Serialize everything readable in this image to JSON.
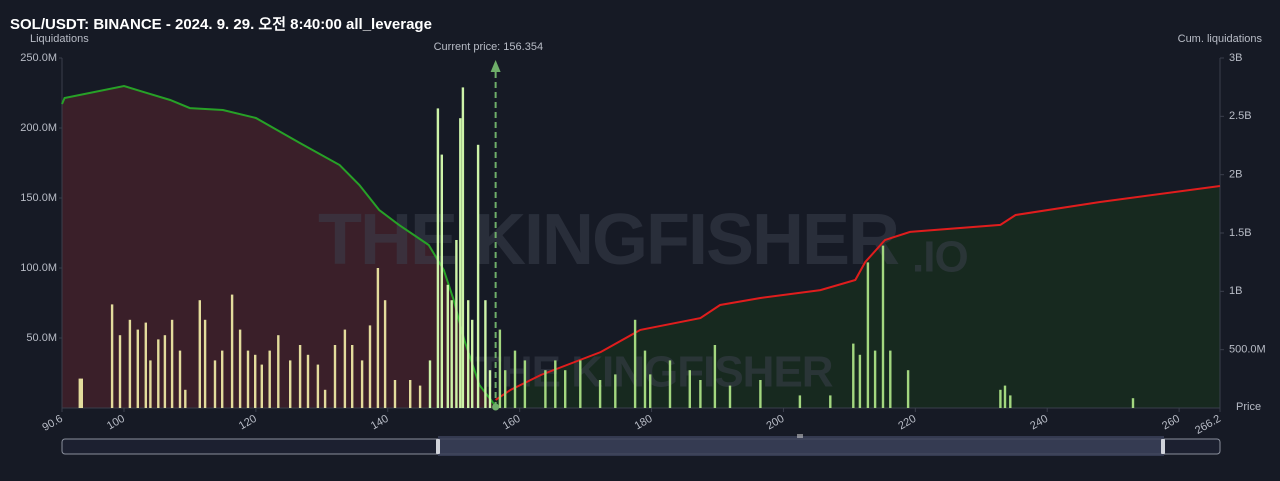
{
  "chart_data": {
    "type": "liquidation-map",
    "title": "SOL/USDT: BINANCE - 2024. 9. 29. 오전 8:40:00 all_leverage",
    "y_label": "Liquidations",
    "y2_label": "Cum. liquidations",
    "x_label": "Price",
    "watermark": "THE KINGFISHER",
    "watermark_suffix": ".IO",
    "current_price": 156.354,
    "current_price_label": "Current price: 156.354",
    "current_price_color": "#6fae6a",
    "xlim": [
      90.6,
      266.2
    ],
    "xticks": [
      90.6,
      100,
      120,
      140,
      160,
      180,
      200,
      220,
      240,
      260,
      266.2
    ],
    "ylim": [
      0,
      250000000
    ],
    "yticks": [
      {
        "value": 50000000,
        "label": "50.0M"
      },
      {
        "value": 100000000,
        "label": "100.0M"
      },
      {
        "value": 150000000,
        "label": "150.0M"
      },
      {
        "value": 200000000,
        "label": "200.0M"
      },
      {
        "value": 250000000,
        "label": "250.0M"
      }
    ],
    "y2lim": [
      0,
      3000000000
    ],
    "y2ticks": [
      {
        "value": 500000000,
        "label": "500.0M"
      },
      {
        "value": 1000000000,
        "label": "1B"
      },
      {
        "value": 1500000000,
        "label": "1.5B"
      },
      {
        "value": 2000000000,
        "label": "2B"
      },
      {
        "value": 2500000000,
        "label": "2.5B"
      },
      {
        "value": 3000000000,
        "label": "3B"
      }
    ],
    "bar_series": [
      {
        "color": "#e3dc9c",
        "x": [
          93.3,
          93.6,
          98.2,
          99.4,
          100.9,
          102.1,
          103.3,
          104.0,
          105.2,
          106.2,
          107.3,
          108.5,
          109.3,
          111.5,
          112.3,
          113.8,
          114.9,
          116.4,
          117.6,
          118.8,
          119.9,
          120.9,
          122.1,
          123.4,
          125.2,
          126.7,
          127.9,
          129.4,
          130.5,
          132.0,
          133.5,
          134.6,
          136.1,
          137.3,
          138.5,
          139.6,
          141.1,
          143.4,
          144.9
        ],
        "values": [
          21000000.0,
          21000000.0,
          74000000.0,
          52000000.0,
          63000000.0,
          56000000.0,
          61000000.0,
          34000000.0,
          49000000.0,
          52000000.0,
          63000000.0,
          41000000.0,
          13000000.0,
          77000000.0,
          63000000.0,
          34000000.0,
          41000000.0,
          81000000.0,
          56000000.0,
          41000000.0,
          38000000.0,
          31000000.0,
          41000000.0,
          52000000.0,
          34000000.0,
          45000000.0,
          38000000.0,
          31000000.0,
          13000000.0,
          45000000.0,
          56000000.0,
          45000000.0,
          34000000.0,
          59000000.0,
          100000000.0,
          77000000.0,
          20000000.0,
          20000000.0,
          16000000.0
        ]
      },
      {
        "color": "#cdf3a8",
        "x": [
          146.4,
          147.6,
          148.2,
          149.1,
          149.7,
          150.4,
          151.0,
          151.4,
          152.2,
          152.8,
          153.7,
          154.8,
          155.5
        ],
        "values": [
          34000000.0,
          214000000.0,
          181000000.0,
          88000000.0,
          77000000.0,
          120000000.0,
          207000000.0,
          229000000.0,
          77000000.0,
          63000000.0,
          188000000.0,
          77000000.0,
          27000000.0
        ]
      },
      {
        "color": "#a3d77f",
        "x": [
          157.0,
          157.8,
          159.3,
          160.8,
          163.9,
          165.4,
          166.9,
          169.2,
          172.2,
          174.5,
          177.5,
          179.0,
          179.8,
          182.8,
          185.8,
          187.4,
          189.6,
          191.9,
          196.5,
          202.5,
          207.1,
          210.6,
          211.6,
          212.8,
          213.9,
          215.1,
          216.2,
          218.9,
          232.9,
          233.6,
          234.4,
          253.0
        ],
        "values": [
          56000000.0,
          27000000.0,
          41000000.0,
          34000000.0,
          27000000.0,
          34000000.0,
          27000000.0,
          34000000.0,
          20000000.0,
          24000000.0,
          63000000.0,
          41000000.0,
          24000000.0,
          34000000.0,
          27000000.0,
          20000000.0,
          45000000.0,
          16000000.0,
          20000000.0,
          9000000.0,
          9000000.0,
          46000000.0,
          38000000.0,
          104000000.0,
          41000000.0,
          116000000.0,
          41000000.0,
          27000000.0,
          13000000.0,
          16000000.0,
          9000000.0,
          7000000.0
        ]
      }
    ],
    "line_series": [
      {
        "color": "#27a127",
        "area_color": "#3a1f29",
        "axis": "y2",
        "x": [
          90.6,
          91.0,
          100.0,
          103.0,
          107.0,
          110.0,
          115.0,
          120.0,
          126.7,
          132.7,
          135.7,
          138.7,
          141.7,
          146.2,
          148.5,
          150.0,
          151.6,
          153.9,
          156.354
        ],
        "values": [
          2606000000.0,
          2657000000.0,
          2760000000.0,
          2708000000.0,
          2640000000.0,
          2571000000.0,
          2554000000.0,
          2486000000.0,
          2271000000.0,
          2083000000.0,
          1911000000.0,
          1697000000.0,
          1569000000.0,
          1397000000.0,
          1183000000.0,
          926000000.0,
          583000000.0,
          197000000.0,
          17000000.0
        ]
      },
      {
        "color": "#e01d1d",
        "area_color": "#17291f",
        "axis": "y2",
        "x": [
          156.354,
          158.6,
          163.2,
          172.3,
          178.3,
          187.4,
          190.4,
          196.5,
          205.6,
          210.9,
          212.4,
          215.4,
          219.2,
          232.9,
          235.2,
          248.0,
          266.2
        ],
        "values": [
          69000000.0,
          154000000.0,
          283000000.0,
          480000000.0,
          669000000.0,
          771000000.0,
          883000000.0,
          943000000.0,
          1011000000.0,
          1097000000.0,
          1251000000.0,
          1440000000.0,
          1509000000.0,
          1569000000.0,
          1654000000.0,
          1766000000.0,
          1903000000.0
        ]
      }
    ]
  }
}
